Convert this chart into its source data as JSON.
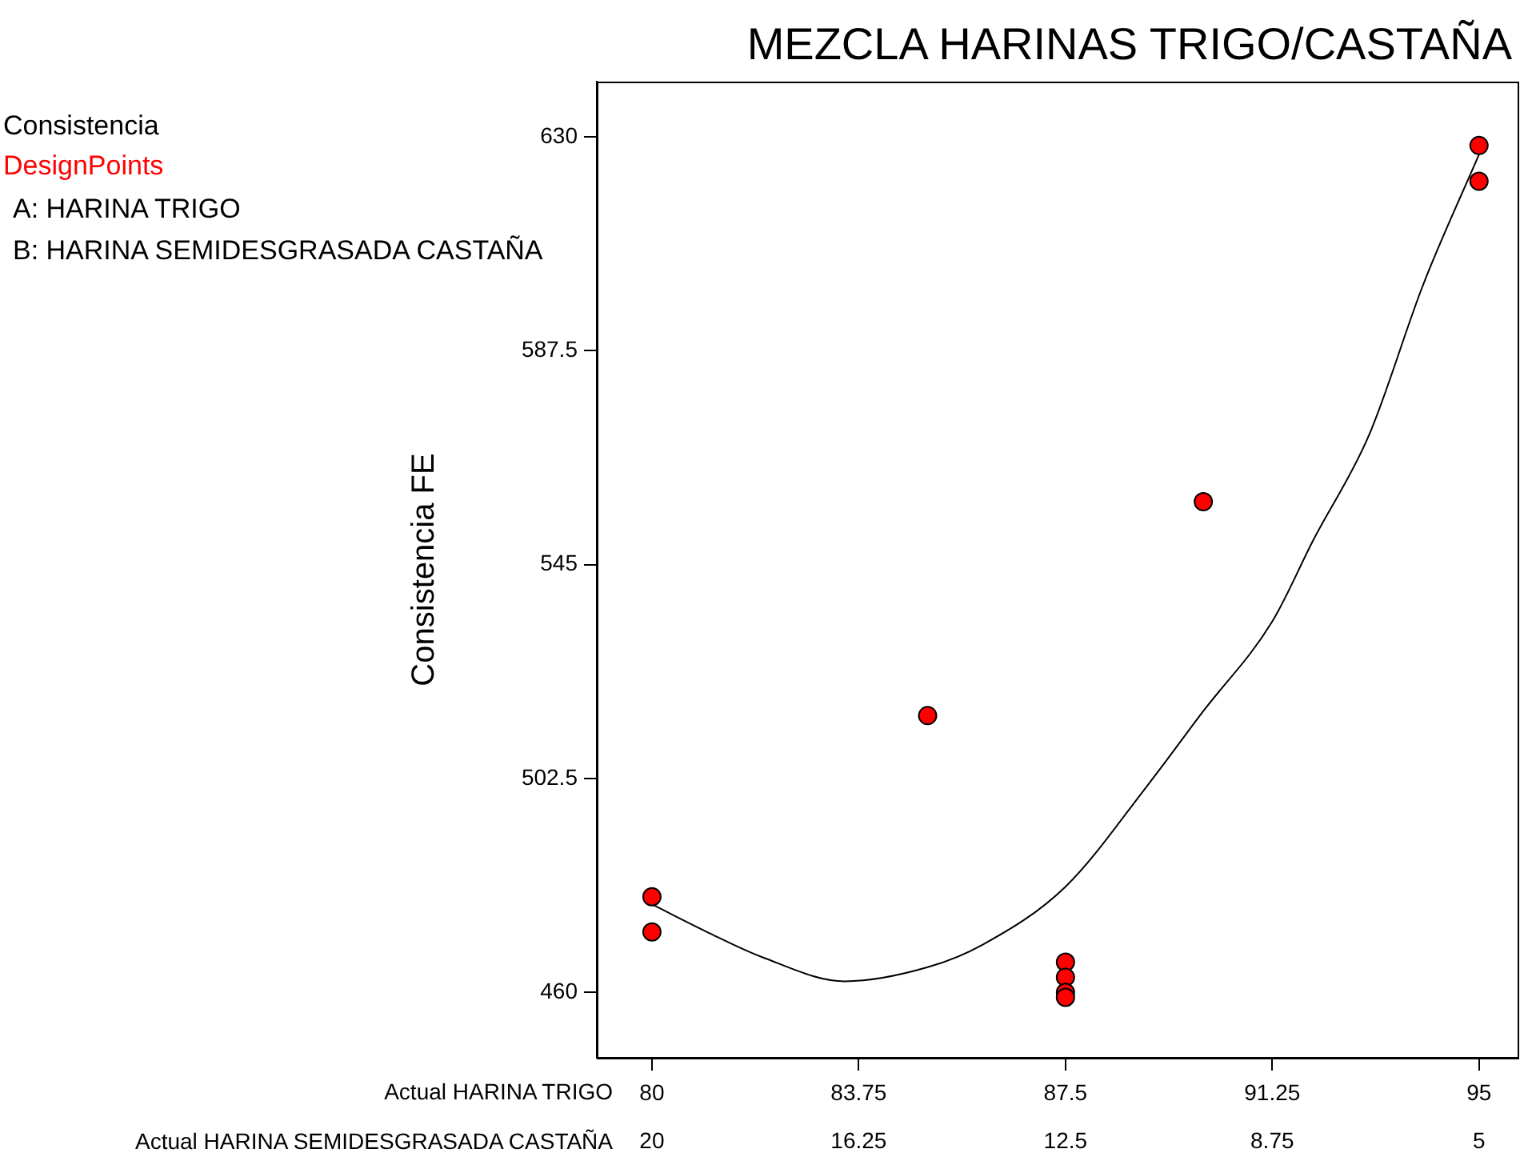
{
  "chart_data": {
    "type": "scatter",
    "title": "MEZCLA HARINAS TRIGO/CASTAÑA",
    "xlabel": "Actual HARINA TRIGO",
    "x2label": "Actual HARINA SEMIDESGRASADA CASTAÑA",
    "ylabel": "Consistencia FE",
    "annotations": [
      "Consistencia",
      "DesignPoints",
      "A: HARINA TRIGO",
      "B: HARINA SEMIDESGRASADA CASTAÑA"
    ],
    "xlim": [
      79,
      95.7
    ],
    "xticks": [
      80,
      83.75,
      87.5,
      91.25,
      95
    ],
    "x2lim": [
      21,
      4.3
    ],
    "x2ticks": [
      20,
      16.25,
      12.5,
      8.75,
      5
    ],
    "ylim": [
      447,
      641
    ],
    "yticks": [
      460,
      502.5,
      545,
      587.5,
      630
    ],
    "grid": false,
    "legend": false,
    "marker": "circle",
    "series": [
      {
        "color": "#ff0000",
        "x": [
          80,
          80,
          85,
          87.5,
          87.5,
          87.5,
          87.5,
          90,
          95,
          95
        ],
        "values": [
          479,
          472,
          515,
          466,
          463,
          460,
          459,
          557.5,
          628.3,
          621.2
        ]
      },
      {
        "type": "line",
        "color": "#000000",
        "marker": "none",
        "x": [
          80,
          81,
          82,
          83.5,
          85,
          86,
          87.5,
          89,
          90,
          91.25,
          92,
          93,
          94,
          95
        ],
        "values": [
          477.5,
          472,
          467,
          462.2,
          465,
          469.5,
          481,
          501.3,
          515.9,
          533.7,
          550,
          570.6,
          601,
          626.5
        ]
      }
    ]
  }
}
